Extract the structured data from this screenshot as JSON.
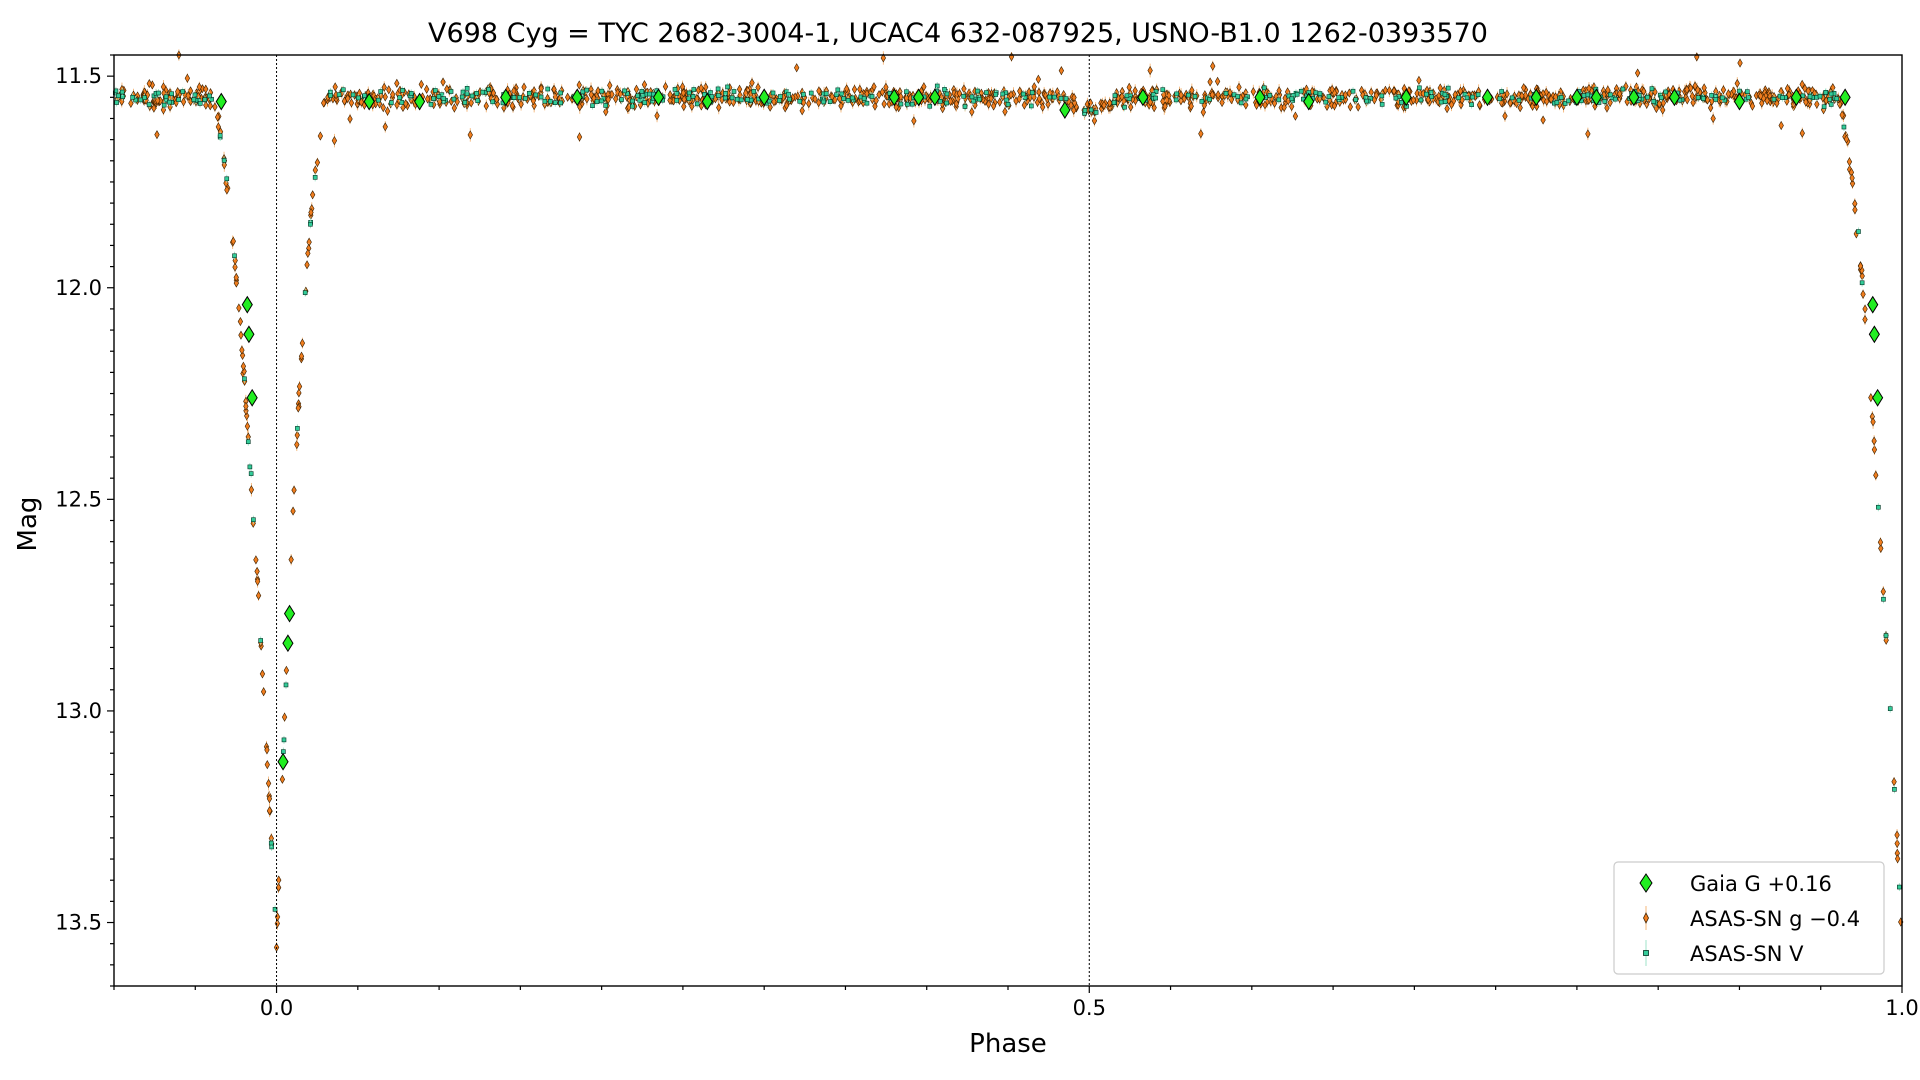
{
  "chart_data": {
    "type": "scatter",
    "title": "V698 Cyg = TYC 2682-3004-1, UCAC4 632-087925, USNO-B1.0 1262-0393570",
    "xlabel": "Phase",
    "ylabel": "Mag",
    "xlim": [
      -0.1,
      1.0
    ],
    "ylim": [
      13.65,
      11.45
    ],
    "y_inverted": true,
    "x_ticks": [
      0.0,
      0.5,
      1.0
    ],
    "x_tick_labels": [
      "0.0",
      "0.5",
      "1.0"
    ],
    "y_ticks": [
      11.5,
      12.0,
      12.5,
      13.0,
      13.5
    ],
    "y_tick_labels": [
      "11.5",
      "12.0",
      "12.5",
      "13.0",
      "13.5"
    ],
    "reference_lines_x": [
      0.0,
      0.5
    ],
    "legend_position": "lower-right",
    "grid": false,
    "series": [
      {
        "name": "Gaia G +0.16",
        "marker": "diamond",
        "color": "#22ee22",
        "x": [
          -0.034,
          -0.018,
          -0.017,
          -0.015,
          0.004,
          0.007,
          0.008,
          0.057,
          0.088,
          0.141,
          0.185,
          0.235,
          0.265,
          0.3,
          0.38,
          0.395,
          0.405,
          0.485,
          0.533,
          0.605,
          0.635,
          0.695,
          0.745,
          0.775,
          0.8,
          0.812,
          0.835,
          0.86,
          0.9,
          0.935,
          0.965,
          0.982,
          0.983,
          0.985
        ],
        "y": [
          11.56,
          12.04,
          12.11,
          12.26,
          13.12,
          12.84,
          12.77,
          11.56,
          11.56,
          11.55,
          11.55,
          11.55,
          11.56,
          11.55,
          11.55,
          11.55,
          11.55,
          11.58,
          11.55,
          11.55,
          11.56,
          11.55,
          11.55,
          11.55,
          11.55,
          11.55,
          11.55,
          11.55,
          11.56,
          11.55,
          11.55,
          12.04,
          12.11,
          12.26
        ]
      },
      {
        "name": "ASAS-SN g −0.4",
        "marker": "thin-diamond",
        "color": "#f07d1e"
      },
      {
        "name": "ASAS-SN V",
        "marker": "square",
        "color": "#33cc99"
      }
    ]
  }
}
